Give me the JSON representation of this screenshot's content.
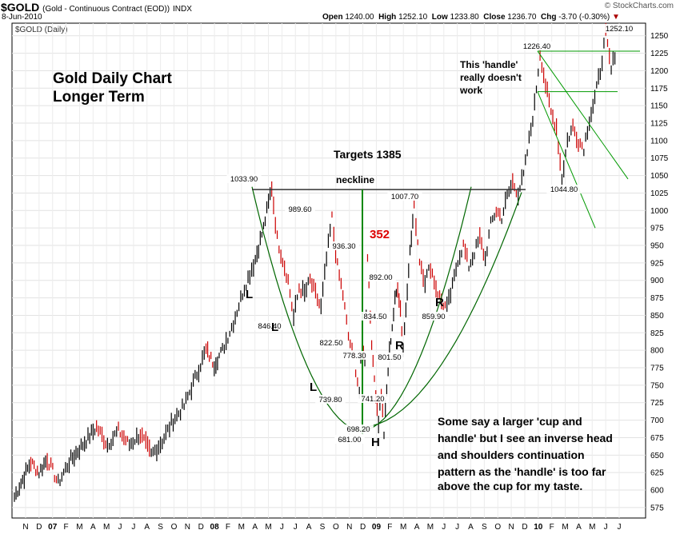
{
  "header": {
    "symbol": "$GOLD",
    "description": "(Gold - Continuous Contract (EOD))",
    "exchange": "INDX",
    "date": "8-Jun-2010",
    "open_label": "Open",
    "open": "1240.00",
    "high_label": "High",
    "high": "1252.10",
    "low_label": "Low",
    "low": "1233.80",
    "close_label": "Close",
    "close": "1236.70",
    "chg_label": "Chg",
    "chg": "-3.70 (-0.30%)",
    "brand": "© StockCharts.com"
  },
  "chart_data": {
    "type": "line",
    "title": "$GOLD (Daily)",
    "ylim": [
      560,
      1268
    ],
    "y_ticks": [
      575,
      600,
      625,
      650,
      675,
      700,
      725,
      750,
      775,
      800,
      825,
      850,
      875,
      900,
      925,
      950,
      975,
      1000,
      1025,
      1050,
      1075,
      1100,
      1125,
      1150,
      1175,
      1200,
      1225,
      1250
    ],
    "x_ticks": [
      "N",
      "D",
      "07",
      "F",
      "M",
      "A",
      "M",
      "J",
      "J",
      "A",
      "S",
      "O",
      "N",
      "D",
      "08",
      "F",
      "M",
      "A",
      "M",
      "J",
      "J",
      "A",
      "S",
      "O",
      "N",
      "D",
      "09",
      "F",
      "M",
      "A",
      "M",
      "J",
      "J",
      "A",
      "S",
      "O",
      "N",
      "D",
      "10",
      "F",
      "M",
      "A",
      "M",
      "J",
      "J"
    ],
    "x_bold": [
      "07",
      "08",
      "09",
      "10"
    ],
    "series": [
      {
        "name": "Gold daily close (approx.)",
        "points": [
          [
            0,
            590
          ],
          [
            3,
            615
          ],
          [
            6,
            640
          ],
          [
            9,
            625
          ],
          [
            12,
            645
          ],
          [
            16,
            610
          ],
          [
            20,
            640
          ],
          [
            25,
            665
          ],
          [
            30,
            690
          ],
          [
            34,
            665
          ],
          [
            38,
            685
          ],
          [
            42,
            665
          ],
          [
            46,
            680
          ],
          [
            50,
            650
          ],
          [
            54,
            670
          ],
          [
            58,
            700
          ],
          [
            62,
            720
          ],
          [
            66,
            760
          ],
          [
            70,
            800
          ],
          [
            73,
            780
          ],
          [
            76,
            800
          ],
          [
            80,
            840
          ],
          [
            84,
            890
          ],
          [
            88,
            930
          ],
          [
            91,
            975
          ],
          [
            94,
            1033.9
          ],
          [
            96,
            960
          ],
          [
            98,
            930
          ],
          [
            100,
            900
          ],
          [
            102,
            846.4
          ],
          [
            104,
            890
          ],
          [
            106,
            880
          ],
          [
            108,
            900
          ],
          [
            110,
            880
          ],
          [
            112,
            860
          ],
          [
            114,
            930
          ],
          [
            116,
            989.6
          ],
          [
            118,
            920
          ],
          [
            120,
            880
          ],
          [
            122,
            820
          ],
          [
            124,
            790
          ],
          [
            126,
            739.8
          ],
          [
            127,
            822.5
          ],
          [
            128,
            780
          ],
          [
            129,
            936.3
          ],
          [
            130,
            850
          ],
          [
            131,
            778.3
          ],
          [
            132,
            740
          ],
          [
            133,
            698.2
          ],
          [
            134,
            740
          ],
          [
            135,
            681
          ],
          [
            136,
            741.2
          ],
          [
            137,
            800
          ],
          [
            138,
            834.5
          ],
          [
            139,
            870
          ],
          [
            140,
            892
          ],
          [
            141,
            860
          ],
          [
            142,
            801.5
          ],
          [
            143,
            860
          ],
          [
            144,
            920
          ],
          [
            145,
            960
          ],
          [
            146,
            1007.7
          ],
          [
            148,
            930
          ],
          [
            150,
            900
          ],
          [
            152,
            920
          ],
          [
            154,
            890
          ],
          [
            156,
            870
          ],
          [
            158,
            859.9
          ],
          [
            160,
            890
          ],
          [
            162,
            930
          ],
          [
            164,
            950
          ],
          [
            166,
            920
          ],
          [
            168,
            940
          ],
          [
            170,
            960
          ],
          [
            172,
            930
          ],
          [
            174,
            980
          ],
          [
            176,
            1000
          ],
          [
            178,
            990
          ],
          [
            180,
            1020
          ],
          [
            182,
            1040
          ],
          [
            184,
            1025
          ],
          [
            186,
            1050
          ],
          [
            188,
            1100
          ],
          [
            190,
            1150
          ],
          [
            192,
            1226.4
          ],
          [
            194,
            1180
          ],
          [
            196,
            1140
          ],
          [
            198,
            1120
          ],
          [
            200,
            1044.8
          ],
          [
            202,
            1100
          ],
          [
            204,
            1120
          ],
          [
            206,
            1100
          ],
          [
            208,
            1090
          ],
          [
            210,
            1130
          ],
          [
            212,
            1160
          ],
          [
            214,
            1200
          ],
          [
            216,
            1252.1
          ],
          [
            218,
            1200
          ],
          [
            220,
            1236.7
          ]
        ]
      }
    ],
    "annotations": {
      "chart_title": "Gold Daily Chart",
      "chart_subtitle": "Longer Term",
      "targets": "Targets 1385",
      "neckline": "neckline",
      "measure": "352",
      "handle_note_1": "This 'handle'",
      "handle_note_2": "really doesn't",
      "handle_note_3": "work",
      "note_1": "Some say a larger 'cup and",
      "note_2": "handle' but I see an inverse head",
      "note_3": "and shoulders continuation",
      "note_4": "pattern as the 'handle' is too far",
      "note_5": "above the cup for my taste.",
      "L1": "L",
      "L2": "L",
      "L3": "L",
      "H": "H",
      "R1": "R",
      "R2": "R",
      "price_labels": [
        "1033.90",
        "989.60",
        "936.30",
        "846.40",
        "822.50",
        "778.30",
        "739.80",
        "698.20",
        "681.00",
        "741.20",
        "834.50",
        "892.00",
        "801.50",
        "1007.70",
        "859.90",
        "1226.40",
        "1044.80",
        "1252.10"
      ]
    },
    "colors": {
      "up": "#000000",
      "down": "#cc0000",
      "cup": "#006600",
      "neckline_stem": "#008800",
      "measure": "#dd0000",
      "handle_lines": "#009900"
    }
  }
}
